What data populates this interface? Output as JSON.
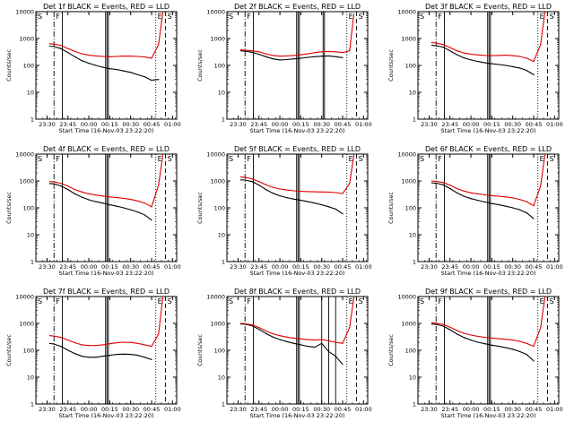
{
  "colors": {
    "background": "#ffffff",
    "axes": "#000000",
    "black_series": "#000000",
    "red_series": "#e00000"
  },
  "chart_data": [
    {
      "type": "line",
      "title": "Det 1f BLACK = Events, RED = LLD",
      "xlabel": "Start Time (16-Nov-03 23:22:20)",
      "ylabel": "Counts/sec",
      "yscale": "log",
      "ylim": [
        1,
        10000
      ],
      "xlim": [
        "23:22",
        "01:03"
      ],
      "x_ticks": [
        "23:30",
        "23:45",
        "00:00",
        "00:15",
        "00:30",
        "00:45",
        "01:00"
      ],
      "y_ticks": [
        "1",
        "10",
        "100",
        "1000",
        "10000"
      ],
      "corner_labels": [
        "S",
        "F",
        "E",
        "S"
      ],
      "x": [
        "23:32",
        "23:35",
        "23:40",
        "23:45",
        "23:50",
        "23:55",
        "00:00",
        "00:05",
        "00:10",
        "00:15",
        "00:20",
        "00:25",
        "00:30",
        "00:35",
        "00:40",
        "00:45",
        "00:50",
        "00:53"
      ],
      "series": [
        {
          "name": "BLACK",
          "values": [
            520,
            500,
            420,
            300,
            210,
            150,
            120,
            100,
            85,
            75,
            70,
            62,
            55,
            45,
            38,
            28,
            30,
            null
          ]
        },
        {
          "name": "RED",
          "values": [
            640,
            620,
            560,
            420,
            330,
            270,
            240,
            225,
            215,
            210,
            215,
            222,
            220,
            215,
            205,
            185,
            600,
            9000
          ]
        }
      ],
      "vlines": {
        "solid": [
          "23:41",
          "00:12",
          "00:13",
          "00:14"
        ],
        "dashdot": [
          "23:35"
        ],
        "dotted": [
          "00:48"
        ],
        "dashed": [
          "00:55"
        ]
      }
    },
    {
      "type": "line",
      "title": "Det 2f BLACK = Events, RED = LLD",
      "xlabel": "Start Time (16-Nov-03 23:22:20)",
      "ylabel": "Counts/sec",
      "yscale": "log",
      "ylim": [
        1,
        10000
      ],
      "xlim": [
        "23:22",
        "01:03"
      ],
      "x_ticks": [
        "23:30",
        "23:45",
        "00:00",
        "00:15",
        "00:30",
        "00:45",
        "01:00"
      ],
      "y_ticks": [
        "1",
        "10",
        "100",
        "1000",
        "10000"
      ],
      "corner_labels": [
        "S",
        "F",
        "E",
        "S"
      ],
      "x": [
        "23:32",
        "23:35",
        "23:40",
        "23:45",
        "23:50",
        "23:55",
        "00:00",
        "00:05",
        "00:10",
        "00:15",
        "00:20",
        "00:25",
        "00:30",
        "00:35",
        "00:40",
        "00:45",
        "00:50",
        "00:53"
      ],
      "series": [
        {
          "name": "BLACK",
          "values": [
            350,
            340,
            310,
            260,
            210,
            175,
            160,
            165,
            175,
            185,
            200,
            210,
            220,
            225,
            210,
            195,
            null,
            null
          ]
        },
        {
          "name": "RED",
          "values": [
            380,
            370,
            350,
            320,
            270,
            235,
            220,
            225,
            235,
            250,
            270,
            300,
            320,
            330,
            320,
            300,
            350,
            8000
          ]
        }
      ],
      "vlines": {
        "solid": [
          "23:41",
          "00:12",
          "00:13",
          "00:14",
          "00:31",
          "00:32"
        ],
        "dashdot": [
          "23:35"
        ],
        "dotted": [
          "00:48"
        ],
        "dashed": [
          "00:55"
        ]
      }
    },
    {
      "type": "line",
      "title": "Det 3f BLACK = Events, RED = LLD",
      "xlabel": "Start Time (16-Nov-03 23:22:20)",
      "ylabel": "Counts/sec",
      "yscale": "log",
      "ylim": [
        1,
        10000
      ],
      "xlim": [
        "23:22",
        "01:03"
      ],
      "x_ticks": [
        "23:30",
        "23:45",
        "00:00",
        "00:15",
        "00:30",
        "00:45",
        "01:00"
      ],
      "y_ticks": [
        "1",
        "10",
        "100",
        "1000",
        "10000"
      ],
      "corner_labels": [
        "S",
        "F",
        "E",
        "S"
      ],
      "x": [
        "23:32",
        "23:35",
        "23:40",
        "23:45",
        "23:50",
        "23:55",
        "00:00",
        "00:05",
        "00:10",
        "00:15",
        "00:20",
        "00:25",
        "00:30",
        "00:35",
        "00:40",
        "00:45",
        "00:50",
        "00:53"
      ],
      "series": [
        {
          "name": "BLACK",
          "values": [
            560,
            540,
            480,
            350,
            250,
            190,
            160,
            140,
            125,
            115,
            108,
            100,
            90,
            80,
            65,
            45,
            null,
            null
          ]
        },
        {
          "name": "RED",
          "values": [
            700,
            680,
            600,
            460,
            350,
            290,
            260,
            245,
            235,
            230,
            235,
            240,
            230,
            215,
            185,
            140,
            600,
            9500
          ]
        }
      ],
      "vlines": {
        "solid": [
          "23:41",
          "00:12",
          "00:13",
          "00:14"
        ],
        "dashdot": [
          "23:35"
        ],
        "dotted": [
          "00:48"
        ],
        "dashed": [
          "00:55"
        ]
      }
    },
    {
      "type": "line",
      "title": "Det 4f BLACK = Events, RED = LLD",
      "xlabel": "Start Time (16-Nov-03 23:22:20)",
      "ylabel": "Counts/sec",
      "yscale": "log",
      "ylim": [
        1,
        10000
      ],
      "xlim": [
        "23:22",
        "01:03"
      ],
      "x_ticks": [
        "23:30",
        "23:45",
        "00:00",
        "00:15",
        "00:30",
        "00:45",
        "01:00"
      ],
      "y_ticks": [
        "1",
        "10",
        "100",
        "1000",
        "10000"
      ],
      "corner_labels": [
        "S",
        "F",
        "E",
        "S"
      ],
      "x": [
        "23:32",
        "23:35",
        "23:40",
        "23:45",
        "23:50",
        "23:55",
        "00:00",
        "00:05",
        "00:10",
        "00:15",
        "00:20",
        "00:25",
        "00:30",
        "00:35",
        "00:40",
        "00:45",
        "00:50",
        "00:53"
      ],
      "series": [
        {
          "name": "BLACK",
          "values": [
            800,
            780,
            650,
            480,
            330,
            250,
            200,
            170,
            150,
            130,
            115,
            100,
            85,
            70,
            55,
            35,
            null,
            null
          ]
        },
        {
          "name": "RED",
          "values": [
            950,
            920,
            820,
            640,
            480,
            390,
            330,
            300,
            275,
            255,
            240,
            225,
            205,
            180,
            150,
            110,
            700,
            9000
          ]
        }
      ],
      "vlines": {
        "solid": [
          "23:41",
          "00:12",
          "00:13",
          "00:14"
        ],
        "dashdot": [
          "23:35"
        ],
        "dotted": [
          "00:48"
        ],
        "dashed": [
          "00:55"
        ]
      }
    },
    {
      "type": "line",
      "title": "Det 5f BLACK = Events, RED = LLD",
      "xlabel": "Start Time (16-Nov-03 23:22:20)",
      "ylabel": "Counts/sec",
      "yscale": "log",
      "ylim": [
        1,
        10000
      ],
      "xlim": [
        "23:22",
        "01:03"
      ],
      "x_ticks": [
        "23:30",
        "23:45",
        "00:00",
        "00:15",
        "00:30",
        "00:45",
        "01:00"
      ],
      "y_ticks": [
        "1",
        "10",
        "100",
        "1000",
        "10000"
      ],
      "corner_labels": [
        "S",
        "F",
        "E",
        "S"
      ],
      "x": [
        "23:32",
        "23:35",
        "23:40",
        "23:45",
        "23:50",
        "23:55",
        "00:00",
        "00:05",
        "00:10",
        "00:15",
        "00:20",
        "00:25",
        "00:30",
        "00:35",
        "00:40",
        "00:45",
        "00:50",
        "00:53"
      ],
      "series": [
        {
          "name": "BLACK",
          "values": [
            1100,
            1080,
            950,
            700,
            480,
            350,
            280,
            240,
            210,
            190,
            170,
            150,
            130,
            110,
            90,
            60,
            null,
            null
          ]
        },
        {
          "name": "RED",
          "values": [
            1400,
            1350,
            1200,
            950,
            720,
            580,
            500,
            460,
            430,
            410,
            400,
            395,
            390,
            385,
            370,
            340,
            800,
            9000
          ]
        }
      ],
      "vlines": {
        "solid": [
          "23:41",
          "00:12",
          "00:13",
          "00:14"
        ],
        "dashdot": [
          "23:35"
        ],
        "dotted": [
          "00:48"
        ],
        "dashed": [
          "00:55"
        ]
      }
    },
    {
      "type": "line",
      "title": "Det 6f BLACK = Events, RED = LLD",
      "xlabel": "Start Time (16-Nov-03 23:22:20)",
      "ylabel": "Counts/sec",
      "yscale": "log",
      "ylim": [
        1,
        10000
      ],
      "xlim": [
        "23:22",
        "01:03"
      ],
      "x_ticks": [
        "23:30",
        "23:45",
        "00:00",
        "00:15",
        "00:30",
        "00:45",
        "01:00"
      ],
      "y_ticks": [
        "1",
        "10",
        "100",
        "1000",
        "10000"
      ],
      "corner_labels": [
        "S",
        "F",
        "E",
        "S"
      ],
      "x": [
        "23:32",
        "23:35",
        "23:40",
        "23:45",
        "23:50",
        "23:55",
        "00:00",
        "00:05",
        "00:10",
        "00:15",
        "00:20",
        "00:25",
        "00:30",
        "00:35",
        "00:40",
        "00:45",
        "00:50",
        "00:53"
      ],
      "series": [
        {
          "name": "BLACK",
          "values": [
            850,
            830,
            720,
            520,
            360,
            270,
            220,
            190,
            165,
            145,
            130,
            115,
            100,
            85,
            65,
            40,
            null,
            null
          ]
        },
        {
          "name": "RED",
          "values": [
            1000,
            970,
            880,
            700,
            520,
            420,
            360,
            330,
            305,
            285,
            270,
            255,
            235,
            205,
            170,
            120,
            650,
            9000
          ]
        }
      ],
      "vlines": {
        "solid": [
          "23:41",
          "00:12",
          "00:13",
          "00:14"
        ],
        "dashdot": [
          "23:35"
        ],
        "dotted": [
          "00:48"
        ],
        "dashed": [
          "00:55"
        ]
      }
    },
    {
      "type": "line",
      "title": "Det 7f BLACK = Events, RED = LLD",
      "xlabel": "Start Time (16-Nov-03 23:22:20)",
      "ylabel": "Counts/sec",
      "yscale": "log",
      "ylim": [
        1,
        10000
      ],
      "xlim": [
        "23:22",
        "01:03"
      ],
      "x_ticks": [
        "23:30",
        "23:45",
        "00:00",
        "00:15",
        "00:30",
        "00:45",
        "01:00"
      ],
      "y_ticks": [
        "1",
        "10",
        "100",
        "1000",
        "10000"
      ],
      "corner_labels": [
        "S",
        "F",
        "E",
        "S"
      ],
      "x": [
        "23:32",
        "23:35",
        "23:40",
        "23:45",
        "23:50",
        "23:55",
        "00:00",
        "00:05",
        "00:10",
        "00:15",
        "00:20",
        "00:25",
        "00:30",
        "00:35",
        "00:40",
        "00:45",
        "00:50",
        "00:53"
      ],
      "series": [
        {
          "name": "BLACK",
          "values": [
            180,
            170,
            140,
            100,
            75,
            60,
            55,
            55,
            60,
            65,
            70,
            72,
            70,
            65,
            55,
            45,
            null,
            null
          ]
        },
        {
          "name": "RED",
          "values": [
            350,
            340,
            300,
            240,
            190,
            160,
            150,
            150,
            160,
            175,
            190,
            200,
            195,
            180,
            160,
            140,
            400,
            9000
          ]
        }
      ],
      "vlines": {
        "solid": [
          "23:41",
          "00:12",
          "00:13",
          "00:14"
        ],
        "dashdot": [
          "23:35"
        ],
        "dotted": [
          "00:48"
        ],
        "dashed": [
          "00:55"
        ]
      }
    },
    {
      "type": "line",
      "title": "Det 8f BLACK = Events, RED = LLD",
      "xlabel": "Start Time (16-Nov-03 23:22:20)",
      "ylabel": "Counts/sec",
      "yscale": "log",
      "ylim": [
        1,
        10000
      ],
      "xlim": [
        "23:22",
        "01:03"
      ],
      "x_ticks": [
        "23:30",
        "23:45",
        "00:00",
        "00:15",
        "00:30",
        "00:45",
        "01:00"
      ],
      "y_ticks": [
        "1",
        "10",
        "100",
        "1000",
        "10000"
      ],
      "corner_labels": [
        "S",
        "F",
        "E",
        "S"
      ],
      "x": [
        "23:32",
        "23:35",
        "23:40",
        "23:45",
        "23:50",
        "23:55",
        "00:00",
        "00:05",
        "00:10",
        "00:15",
        "00:20",
        "00:25",
        "00:30",
        "00:35",
        "00:40",
        "00:45",
        "00:50",
        "00:53"
      ],
      "series": [
        {
          "name": "BLACK",
          "values": [
            950,
            930,
            820,
            600,
            420,
            310,
            250,
            210,
            180,
            160,
            140,
            130,
            180,
            90,
            60,
            30,
            null,
            null
          ]
        },
        {
          "name": "RED",
          "values": [
            1000,
            980,
            880,
            700,
            520,
            410,
            350,
            310,
            285,
            265,
            250,
            240,
            250,
            225,
            200,
            180,
            700,
            9000
          ]
        }
      ],
      "vlines": {
        "solid": [
          "23:41",
          "00:12",
          "00:13",
          "00:14",
          "00:30",
          "00:35",
          "00:40"
        ],
        "dashdot": [
          "23:35"
        ],
        "dotted": [
          "00:48"
        ],
        "dashed": [
          "00:55"
        ]
      }
    },
    {
      "type": "line",
      "title": "Det 9f BLACK = Events, RED = LLD",
      "xlabel": "Start Time (16-Nov-03 23:22:20)",
      "ylabel": "Counts/sec",
      "yscale": "log",
      "ylim": [
        1,
        10000
      ],
      "xlim": [
        "23:22",
        "01:03"
      ],
      "x_ticks": [
        "23:30",
        "23:45",
        "00:00",
        "00:15",
        "00:30",
        "00:45",
        "01:00"
      ],
      "y_ticks": [
        "1",
        "10",
        "100",
        "1000",
        "10000"
      ],
      "corner_labels": [
        "S",
        "F",
        "E",
        "S"
      ],
      "x": [
        "23:32",
        "23:35",
        "23:40",
        "23:45",
        "23:50",
        "23:55",
        "00:00",
        "00:05",
        "00:10",
        "00:15",
        "00:20",
        "00:25",
        "00:30",
        "00:35",
        "00:40",
        "00:45",
        "00:50",
        "00:53"
      ],
      "series": [
        {
          "name": "BLACK",
          "values": [
            950,
            920,
            800,
            580,
            400,
            300,
            240,
            200,
            175,
            155,
            140,
            125,
            110,
            90,
            70,
            40,
            null,
            null
          ]
        },
        {
          "name": "RED",
          "values": [
            1050,
            1020,
            920,
            720,
            540,
            430,
            370,
            330,
            305,
            285,
            270,
            255,
            240,
            215,
            180,
            140,
            700,
            9000
          ]
        }
      ],
      "vlines": {
        "solid": [
          "23:41",
          "00:12",
          "00:13",
          "00:14"
        ],
        "dashdot": [
          "23:35"
        ],
        "dotted": [
          "00:48"
        ],
        "dashed": [
          "00:55"
        ]
      }
    }
  ]
}
